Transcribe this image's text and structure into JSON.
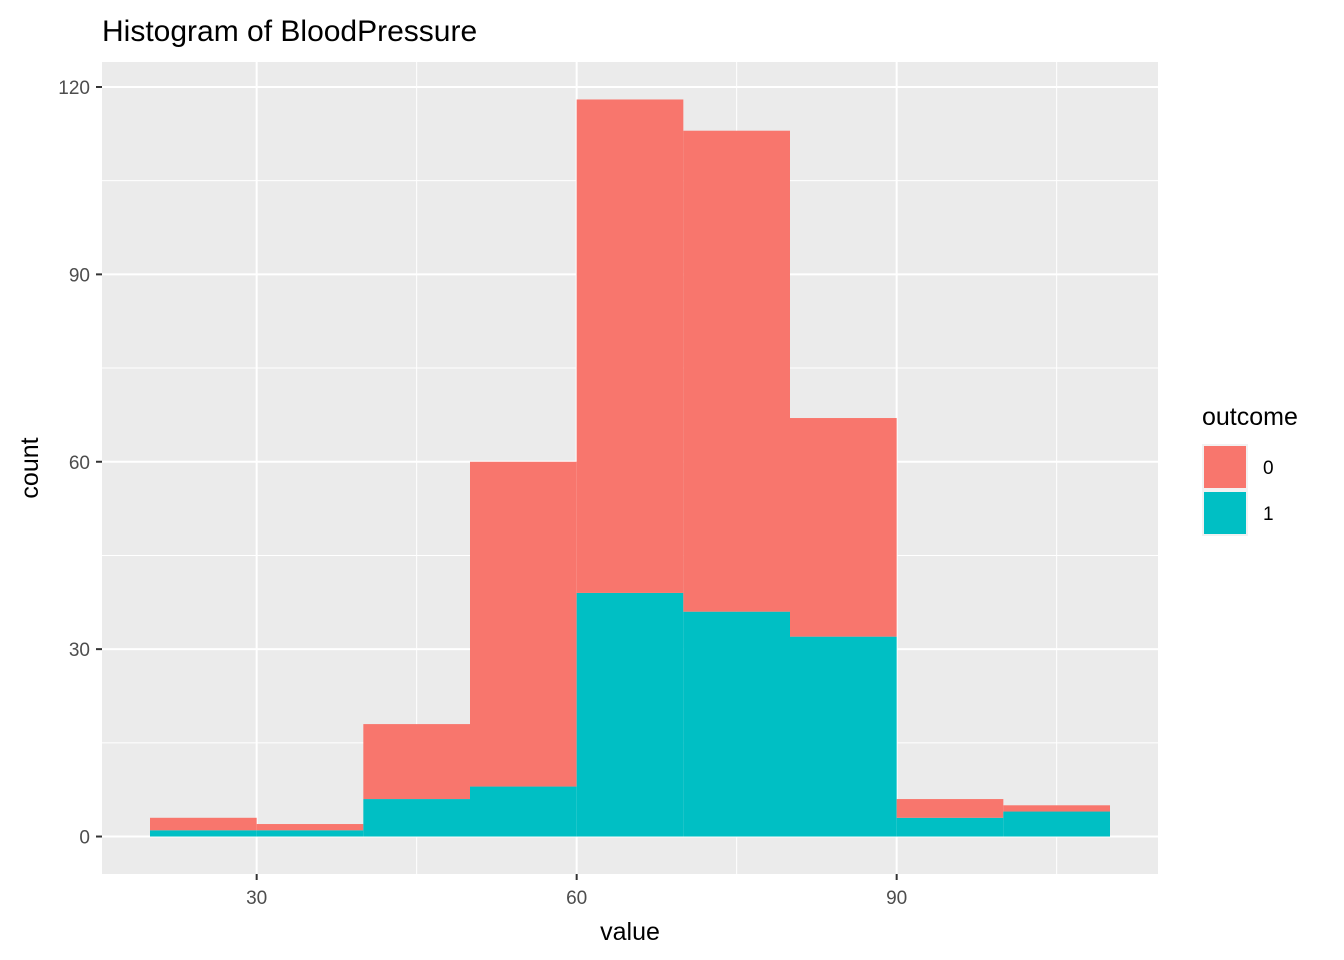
{
  "chart_data": {
    "type": "bar",
    "title": "Histogram of BloodPressure",
    "xlabel": "value",
    "ylabel": "count",
    "x_ticks": [
      30,
      60,
      90
    ],
    "y_ticks": [
      0,
      30,
      60,
      90,
      120
    ],
    "xlim": [
      15.5,
      114.5
    ],
    "ylim": [
      -6,
      124
    ],
    "grid": true,
    "stacked": true,
    "bins": [
      {
        "from": 20,
        "to": 30
      },
      {
        "from": 30,
        "to": 40
      },
      {
        "from": 40,
        "to": 50
      },
      {
        "from": 50,
        "to": 60
      },
      {
        "from": 60,
        "to": 70
      },
      {
        "from": 70,
        "to": 80
      },
      {
        "from": 80,
        "to": 90
      },
      {
        "from": 90,
        "to": 100
      },
      {
        "from": 100,
        "to": 110
      }
    ],
    "series": [
      {
        "name": "0",
        "color": "#F8766D",
        "values": [
          2,
          1,
          12,
          52,
          79,
          77,
          35,
          3,
          1
        ]
      },
      {
        "name": "1",
        "color": "#00BFC4",
        "values": [
          1,
          1,
          6,
          8,
          39,
          36,
          32,
          3,
          4
        ]
      }
    ],
    "legend": {
      "title": "outcome",
      "position": "right"
    }
  },
  "colors": {
    "panel_background": "#EBEBEB",
    "grid": "#FFFFFF"
  }
}
